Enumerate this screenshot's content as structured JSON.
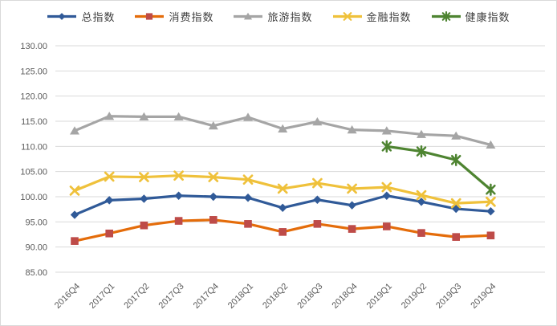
{
  "chart": {
    "background": "#FFFFFF",
    "border_color": "#D9D9D9",
    "gridline_color": "#D9D9D9",
    "axis_text_color": "#595959",
    "legend_text_color": "#404040"
  },
  "chart_data": {
    "type": "line",
    "title": "",
    "xlabel": "",
    "ylabel": "",
    "grid": true,
    "legend_position": "top",
    "ylim": [
      85,
      130
    ],
    "ytick_step": 5,
    "ytick_labels": [
      "130.00",
      "125.00",
      "120.00",
      "115.00",
      "110.00",
      "105.00",
      "100.00",
      "95.00",
      "90.00",
      "85.00"
    ],
    "categories": [
      "2016Q4",
      "2017Q1",
      "2017Q2",
      "2017Q3",
      "2017Q4",
      "2018Q1",
      "2018Q2",
      "2018Q3",
      "2018Q4",
      "2019Q1",
      "2019Q2",
      "2019Q3",
      "2019Q4"
    ],
    "series": [
      {
        "id": "total-index",
        "name": "总指数",
        "color": "#305A98",
        "marker": "diamond",
        "values": [
          96.4,
          99.3,
          99.6,
          100.2,
          100.0,
          99.8,
          97.8,
          99.4,
          98.3,
          100.2,
          99.0,
          97.6,
          97.1
        ]
      },
      {
        "id": "consumption-index",
        "name": "消费指数",
        "color": "#BE4B48",
        "line_color": "#E46C0A",
        "marker": "square",
        "values": [
          91.2,
          92.7,
          94.3,
          95.2,
          95.4,
          94.6,
          93.0,
          94.6,
          93.6,
          94.1,
          92.8,
          92.0,
          92.3
        ]
      },
      {
        "id": "tourism-index",
        "name": "旅游指数",
        "color": "#A5A5A5",
        "marker": "triangle",
        "values": [
          113.1,
          116.0,
          115.9,
          115.9,
          114.1,
          115.8,
          113.5,
          114.9,
          113.3,
          113.1,
          112.4,
          112.1,
          110.3
        ]
      },
      {
        "id": "finance-index",
        "name": "金融指数",
        "color": "#EFC13B",
        "marker": "x",
        "values": [
          101.2,
          104.0,
          103.9,
          104.2,
          103.9,
          103.4,
          101.6,
          102.7,
          101.6,
          101.9,
          100.3,
          98.7,
          99.0
        ]
      },
      {
        "id": "health-index",
        "name": "健康指数",
        "color": "#4E8431",
        "marker": "star",
        "values": [
          null,
          null,
          null,
          null,
          null,
          null,
          null,
          null,
          null,
          110.0,
          109.0,
          107.3,
          101.4
        ]
      }
    ]
  }
}
